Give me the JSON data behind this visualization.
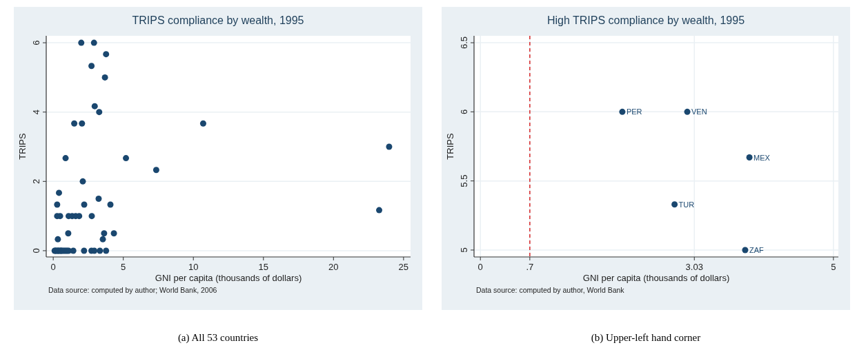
{
  "chart_data": [
    {
      "type": "scatter",
      "title": "TRIPS compliance by wealth, 1995",
      "xlabel": "GNI per capita (thousands of dollars)",
      "ylabel": "TRIPS",
      "xlim": [
        -0.5,
        25.5
      ],
      "ylim": [
        -0.18,
        6.2
      ],
      "xticks": [
        0,
        5,
        10,
        15,
        20,
        25
      ],
      "yticks": [
        0,
        2,
        4,
        6
      ],
      "grid": "y",
      "marker": "circle",
      "series": [
        {
          "color": "#1a476f",
          "x": [
            2.0,
            2.91,
            3.77,
            2.73,
            3.69,
            2.96,
            3.28,
            1.5,
            2.05,
            10.7,
            0.88,
            5.19,
            7.35,
            2.11,
            0.41,
            0.28,
            2.21,
            3.24,
            4.08,
            0.28,
            0.49,
            1.1,
            1.35,
            1.6,
            1.85,
            2.75,
            1.07,
            3.63,
            4.33,
            0.33,
            3.54,
            23.97,
            23.26,
            0.1,
            0.15,
            0.2,
            0.3,
            0.35,
            0.4,
            0.5,
            0.55,
            0.6,
            0.7,
            0.8,
            0.9,
            1.0,
            1.1,
            1.43,
            2.2,
            2.73,
            2.93,
            3.33,
            3.77
          ],
          "values": [
            6,
            6,
            5.67,
            5.33,
            5,
            4.17,
            4,
            3.67,
            3.67,
            3.67,
            2.67,
            2.67,
            2.33,
            2,
            1.67,
            1.33,
            1.33,
            1.5,
            1.33,
            1,
            1,
            1,
            1,
            1,
            1,
            1,
            0.5,
            0.5,
            0.5,
            0.33,
            0.33,
            3,
            1.17,
            0,
            0,
            0,
            0,
            0,
            0,
            0,
            0,
            0,
            0,
            0,
            0,
            0,
            0,
            0,
            0,
            0,
            0,
            0,
            0
          ]
        }
      ],
      "annotations": [
        "Data source: computed by author; World Bank, 2006",
        "(a)  All 53 countries"
      ]
    },
    {
      "type": "scatter",
      "title": "High TRIPS compliance by wealth, 1995",
      "xlabel": "GNI per capita (thousands of dollars)",
      "ylabel": "TRIPS",
      "xlim": [
        -0.09,
        5.07
      ],
      "ylim": [
        4.95,
        6.55
      ],
      "xticks": [
        0,
        {
          "value": 0.7,
          "label": ".7"
        },
        3.03,
        5
      ],
      "yticks": [
        5,
        5.5,
        6,
        6.5
      ],
      "grid": true,
      "marker": "circle",
      "series": [
        {
          "color": "#1a476f",
          "x": [
            2.01,
            2.93,
            3.81,
            2.75,
            3.75
          ],
          "values": [
            6,
            6,
            5.67,
            5.33,
            5
          ]
        }
      ],
      "ref_lines": [
        {
          "axis": "x",
          "value": 0.7,
          "color": "#d62728",
          "line_style": "dashed"
        }
      ],
      "annotations": [
        "Data source: computed by author, World Bank",
        "(b)  Upper-left hand corner",
        {
          "text": "PER",
          "x": 2.01,
          "y": 6
        },
        {
          "text": "VEN",
          "x": 2.93,
          "y": 6
        },
        {
          "text": "MEX",
          "x": 3.81,
          "y": 5.67
        },
        {
          "text": "TUR",
          "x": 2.75,
          "y": 5.33
        },
        {
          "text": "ZAF",
          "x": 3.75,
          "y": 5
        }
      ]
    }
  ]
}
